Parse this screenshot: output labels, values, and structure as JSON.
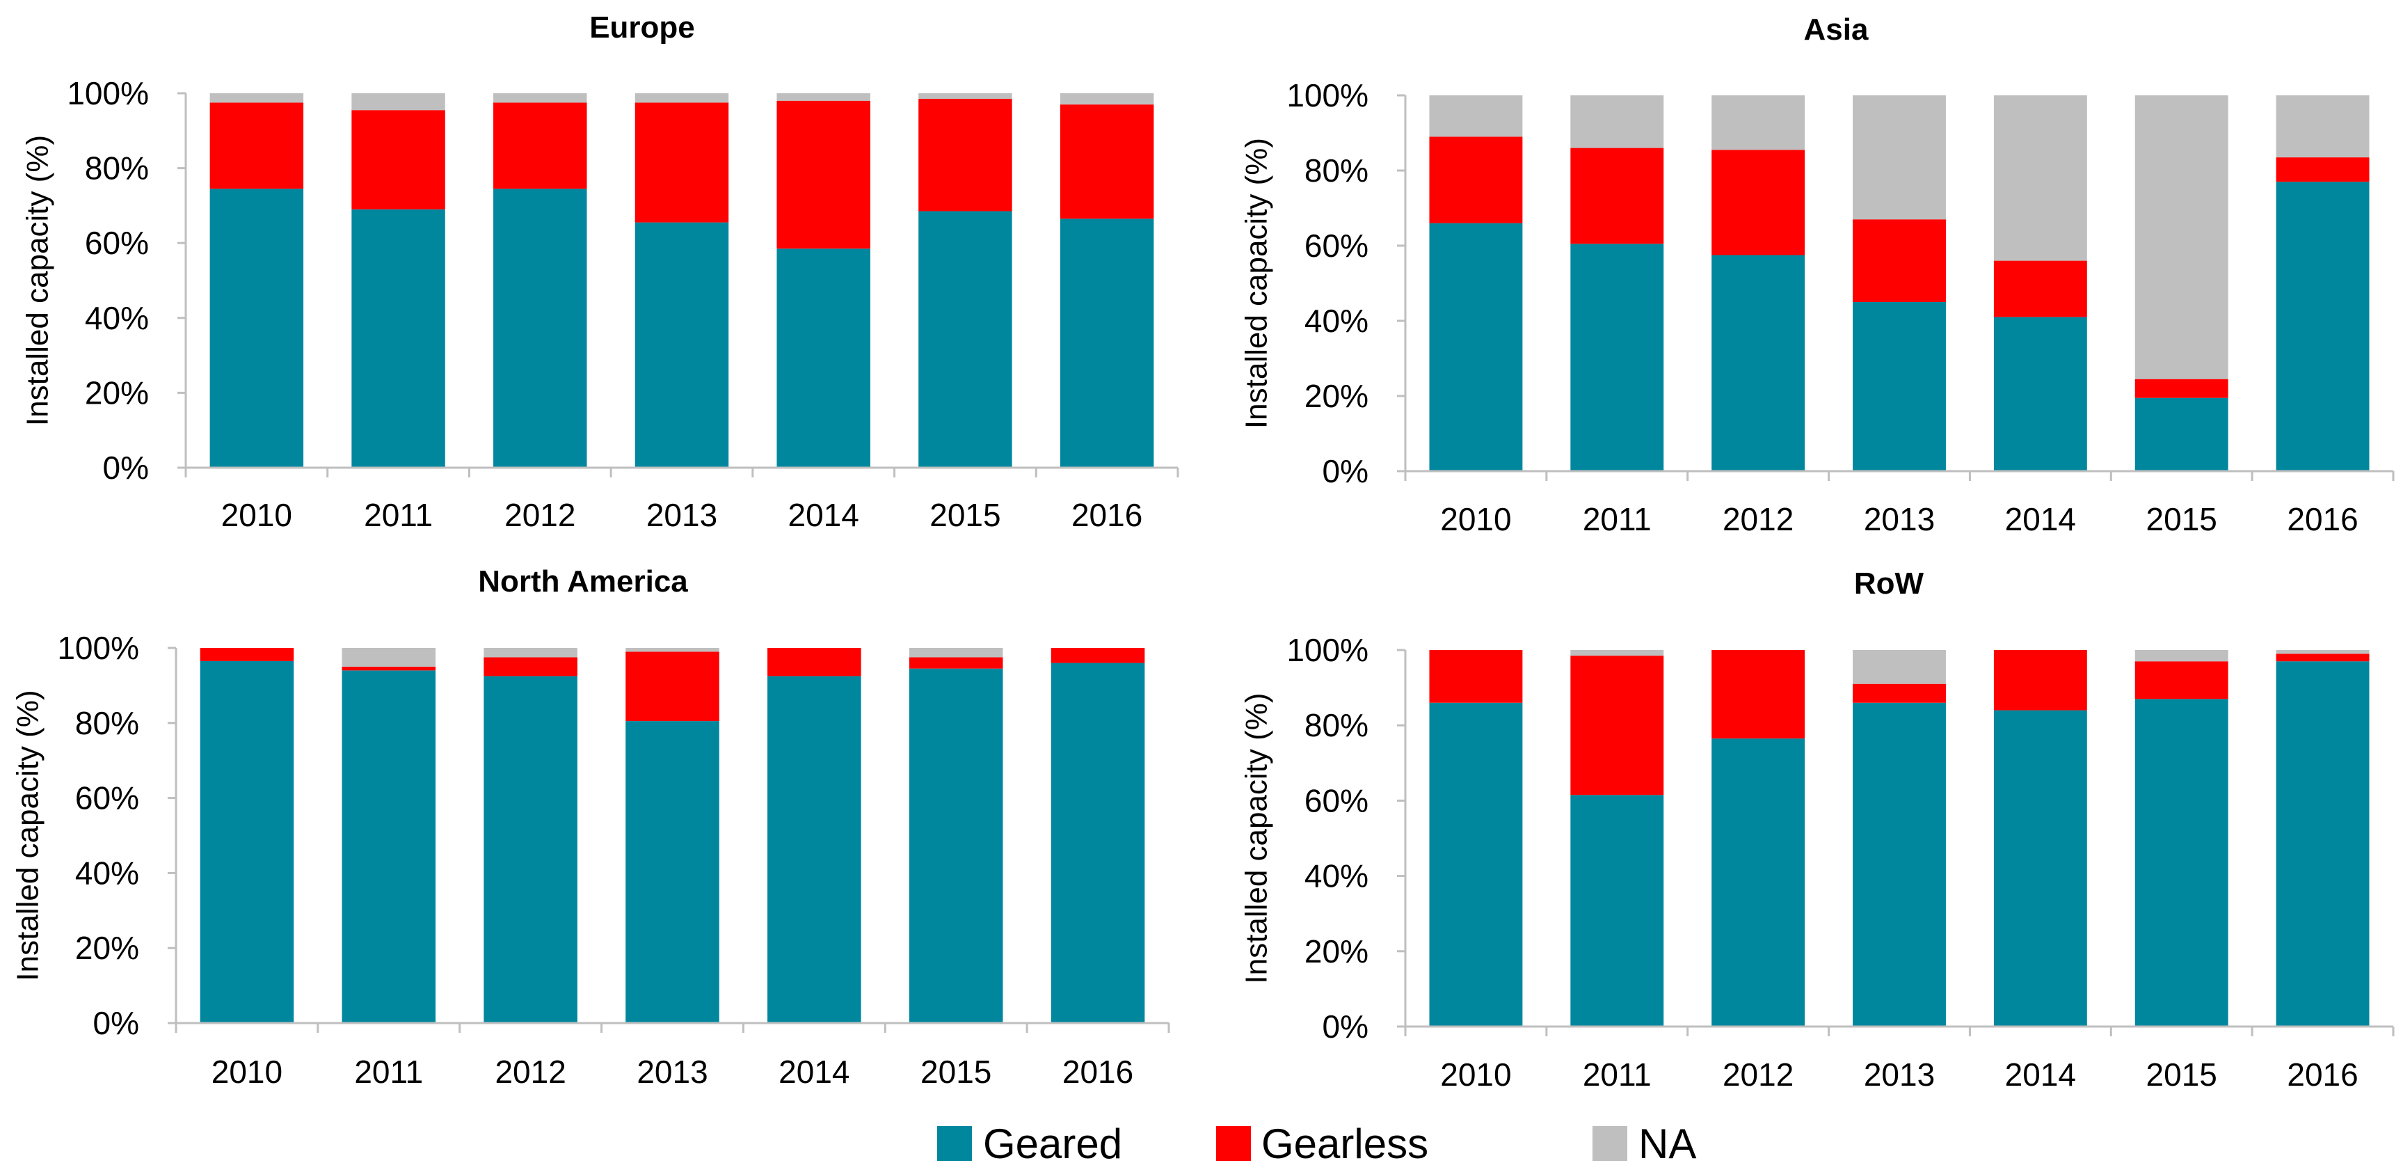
{
  "colors": {
    "geared": "#00879E",
    "gearless": "#FF0000",
    "na": "#BFBFBF",
    "axis": "#BFBFBF"
  },
  "chart_data": [
    {
      "type": "bar",
      "stacked": true,
      "title": "Europe",
      "ylabel": "Installed capacity (%)",
      "ylim": [
        0,
        100
      ],
      "yticks": [
        "0%",
        "20%",
        "40%",
        "60%",
        "80%",
        "100%"
      ],
      "categories": [
        "2010",
        "2011",
        "2012",
        "2013",
        "2014",
        "2015",
        "2016"
      ],
      "series": [
        {
          "name": "Geared",
          "values": [
            74.5,
            69,
            74.5,
            65.5,
            58.5,
            68.5,
            66.5
          ]
        },
        {
          "name": "Gearless",
          "values": [
            23,
            26.5,
            23,
            32,
            39.5,
            30,
            30.5
          ]
        },
        {
          "name": "NA",
          "values": [
            2.5,
            4.5,
            2.5,
            2.5,
            2,
            1.5,
            3
          ]
        }
      ]
    },
    {
      "type": "bar",
      "stacked": true,
      "title": "Asia",
      "ylabel": "Installed capacity (%)",
      "ylim": [
        0,
        100
      ],
      "yticks": [
        "0%",
        "20%",
        "40%",
        "60%",
        "80%",
        "100%"
      ],
      "categories": [
        "2010",
        "2011",
        "2012",
        "2013",
        "2014",
        "2015",
        "2016"
      ],
      "series": [
        {
          "name": "Geared",
          "values": [
            66,
            60.5,
            57.5,
            45,
            41,
            19.5,
            77
          ]
        },
        {
          "name": "Gearless",
          "values": [
            23,
            25.5,
            28,
            22,
            15,
            5,
            6.5
          ]
        },
        {
          "name": "NA",
          "values": [
            11,
            14,
            14.5,
            33,
            44,
            75.5,
            16.5
          ]
        }
      ]
    },
    {
      "type": "bar",
      "stacked": true,
      "title": "North America",
      "ylabel": "Installed capacity (%)",
      "ylim": [
        0,
        100
      ],
      "yticks": [
        "0%",
        "20%",
        "40%",
        "60%",
        "80%",
        "100%"
      ],
      "categories": [
        "2010",
        "2011",
        "2012",
        "2013",
        "2014",
        "2015",
        "2016"
      ],
      "series": [
        {
          "name": "Geared",
          "values": [
            96.5,
            94,
            92.5,
            80.5,
            92.5,
            94.5,
            96
          ]
        },
        {
          "name": "Gearless",
          "values": [
            3.5,
            1,
            5,
            18.5,
            7.5,
            3,
            4
          ]
        },
        {
          "name": "NA",
          "values": [
            0,
            5,
            2.5,
            1,
            0,
            2.5,
            0
          ]
        }
      ]
    },
    {
      "type": "bar",
      "stacked": true,
      "title": "RoW",
      "ylabel": "Installed capacity (%)",
      "ylim": [
        0,
        100
      ],
      "yticks": [
        "0%",
        "20%",
        "40%",
        "60%",
        "80%",
        "100%"
      ],
      "categories": [
        "2010",
        "2011",
        "2012",
        "2013",
        "2014",
        "2015",
        "2016"
      ],
      "series": [
        {
          "name": "Geared",
          "values": [
            86,
            61.5,
            76.5,
            86,
            84,
            87,
            97
          ]
        },
        {
          "name": "Gearless",
          "values": [
            14,
            37,
            23.5,
            5,
            16,
            10,
            2
          ]
        },
        {
          "name": "NA",
          "values": [
            0,
            1.5,
            0,
            9,
            0,
            3,
            1
          ]
        }
      ]
    }
  ],
  "legend": [
    {
      "label": "Geared",
      "color": "#00879E"
    },
    {
      "label": "Gearless",
      "color": "#FF0000"
    },
    {
      "label": "NA",
      "color": "#BFBFBF"
    }
  ]
}
